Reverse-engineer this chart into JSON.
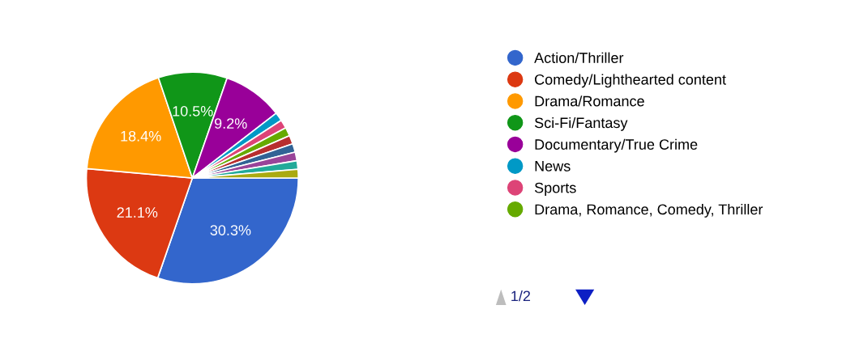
{
  "chart_data": {
    "type": "pie",
    "categories": [
      "Action/Thriller",
      "Comedy/Lighthearted content",
      "Drama/Romance",
      "Sci-Fi/Fantasy",
      "Documentary/True Crime",
      "News",
      "Sports",
      "Drama, Romance, Comedy, Thriller",
      null,
      null,
      null,
      null,
      null
    ],
    "values": [
      30.3,
      21.1,
      18.4,
      10.5,
      9.2,
      1.31,
      1.31,
      1.31,
      1.31,
      1.31,
      1.31,
      1.31,
      1.31
    ],
    "colors": [
      "#3366cc",
      "#dc3912",
      "#ff9900",
      "#109618",
      "#990099",
      "#0099c6",
      "#dd4477",
      "#66aa00",
      "#b82e2e",
      "#316395",
      "#994499",
      "#22aa99",
      "#aaaa11"
    ],
    "value_labels": [
      "30.3%",
      "21.1%",
      "18.4%",
      "10.5%",
      "9.2%",
      null,
      null,
      null,
      null,
      null,
      null,
      null,
      null
    ],
    "legend": "right",
    "annotations": [
      "1/2"
    ]
  }
}
